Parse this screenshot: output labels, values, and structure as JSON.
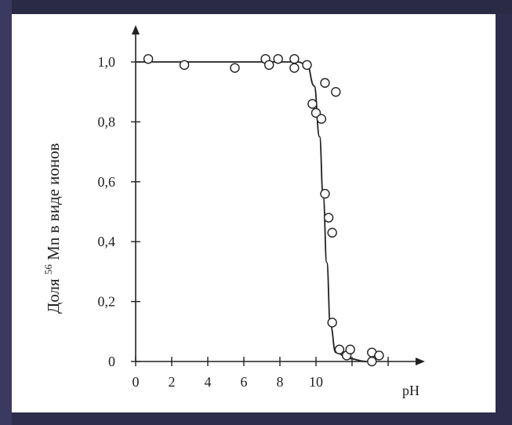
{
  "chart_data": {
    "type": "scatter",
    "title": "",
    "xlabel": "pH",
    "ylabel_main": "Доля",
    "ylabel_superscript": "56",
    "ylabel_rest": "Mn в виде ионов",
    "xlim": [
      0,
      15.5
    ],
    "ylim": [
      0,
      1.05
    ],
    "x_ticks": [
      {
        "value": 0,
        "label": "0"
      },
      {
        "value": 2,
        "label": "2"
      },
      {
        "value": 4,
        "label": "4"
      },
      {
        "value": 6,
        "label": "6"
      },
      {
        "value": 8,
        "label": "8"
      },
      {
        "value": 10,
        "label": "10"
      }
    ],
    "y_ticks": [
      {
        "value": 0,
        "label": "0"
      },
      {
        "value": 0.2,
        "label": "0,2"
      },
      {
        "value": 0.4,
        "label": "0,4"
      },
      {
        "value": 0.6,
        "label": "0,6"
      },
      {
        "value": 0.8,
        "label": "0,8"
      },
      {
        "value": 1.0,
        "label": "1,0"
      }
    ],
    "grid": false,
    "legend": "none",
    "series": [
      {
        "marker": "open-circle",
        "points": [
          {
            "x": 0.7,
            "y": 1.01
          },
          {
            "x": 2.7,
            "y": 0.99
          },
          {
            "x": 5.5,
            "y": 0.98
          },
          {
            "x": 7.2,
            "y": 1.01
          },
          {
            "x": 7.4,
            "y": 0.99
          },
          {
            "x": 7.9,
            "y": 1.01
          },
          {
            "x": 8.8,
            "y": 1.01
          },
          {
            "x": 8.8,
            "y": 0.98
          },
          {
            "x": 9.5,
            "y": 0.99
          },
          {
            "x": 9.8,
            "y": 0.86
          },
          {
            "x": 10.0,
            "y": 0.83
          },
          {
            "x": 10.3,
            "y": 0.81
          },
          {
            "x": 10.5,
            "y": 0.93
          },
          {
            "x": 10.5,
            "y": 0.56
          },
          {
            "x": 10.7,
            "y": 0.48
          },
          {
            "x": 10.9,
            "y": 0.43
          },
          {
            "x": 11.1,
            "y": 0.9
          },
          {
            "x": 10.9,
            "y": 0.13
          },
          {
            "x": 11.3,
            "y": 0.04
          },
          {
            "x": 11.7,
            "y": 0.02
          },
          {
            "x": 11.9,
            "y": 0.04
          },
          {
            "x": 13.1,
            "y": 0.03
          },
          {
            "x": 13.1,
            "y": 0.0
          },
          {
            "x": 13.5,
            "y": 0.02
          }
        ]
      },
      {
        "type": "line",
        "points": [
          {
            "x": 0,
            "y": 1.0
          },
          {
            "x": 9.0,
            "y": 1.0
          },
          {
            "x": 9.5,
            "y": 0.99
          },
          {
            "x": 9.9,
            "y": 0.92
          },
          {
            "x": 10.2,
            "y": 0.75
          },
          {
            "x": 10.4,
            "y": 0.55
          },
          {
            "x": 10.6,
            "y": 0.33
          },
          {
            "x": 10.8,
            "y": 0.12
          },
          {
            "x": 11.1,
            "y": 0.03
          },
          {
            "x": 11.8,
            "y": 0.01
          },
          {
            "x": 12.8,
            "y": 0.0
          }
        ]
      }
    ]
  }
}
